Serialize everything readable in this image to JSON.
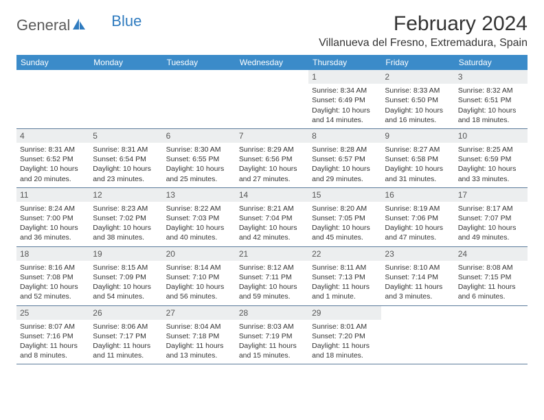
{
  "logo": {
    "text1": "General",
    "text2": "Blue"
  },
  "title": "February 2024",
  "location": "Villanueva del Fresno, Extremadura, Spain",
  "day_header_bg": "#3b8bc9",
  "day_headers": [
    "Sunday",
    "Monday",
    "Tuesday",
    "Wednesday",
    "Thursday",
    "Friday",
    "Saturday"
  ],
  "weeks": [
    [
      {
        "num": "",
        "lines": []
      },
      {
        "num": "",
        "lines": []
      },
      {
        "num": "",
        "lines": []
      },
      {
        "num": "",
        "lines": []
      },
      {
        "num": "1",
        "lines": [
          "Sunrise: 8:34 AM",
          "Sunset: 6:49 PM",
          "Daylight: 10 hours and 14 minutes."
        ]
      },
      {
        "num": "2",
        "lines": [
          "Sunrise: 8:33 AM",
          "Sunset: 6:50 PM",
          "Daylight: 10 hours and 16 minutes."
        ]
      },
      {
        "num": "3",
        "lines": [
          "Sunrise: 8:32 AM",
          "Sunset: 6:51 PM",
          "Daylight: 10 hours and 18 minutes."
        ]
      }
    ],
    [
      {
        "num": "4",
        "lines": [
          "Sunrise: 8:31 AM",
          "Sunset: 6:52 PM",
          "Daylight: 10 hours and 20 minutes."
        ]
      },
      {
        "num": "5",
        "lines": [
          "Sunrise: 8:31 AM",
          "Sunset: 6:54 PM",
          "Daylight: 10 hours and 23 minutes."
        ]
      },
      {
        "num": "6",
        "lines": [
          "Sunrise: 8:30 AM",
          "Sunset: 6:55 PM",
          "Daylight: 10 hours and 25 minutes."
        ]
      },
      {
        "num": "7",
        "lines": [
          "Sunrise: 8:29 AM",
          "Sunset: 6:56 PM",
          "Daylight: 10 hours and 27 minutes."
        ]
      },
      {
        "num": "8",
        "lines": [
          "Sunrise: 8:28 AM",
          "Sunset: 6:57 PM",
          "Daylight: 10 hours and 29 minutes."
        ]
      },
      {
        "num": "9",
        "lines": [
          "Sunrise: 8:27 AM",
          "Sunset: 6:58 PM",
          "Daylight: 10 hours and 31 minutes."
        ]
      },
      {
        "num": "10",
        "lines": [
          "Sunrise: 8:25 AM",
          "Sunset: 6:59 PM",
          "Daylight: 10 hours and 33 minutes."
        ]
      }
    ],
    [
      {
        "num": "11",
        "lines": [
          "Sunrise: 8:24 AM",
          "Sunset: 7:00 PM",
          "Daylight: 10 hours and 36 minutes."
        ]
      },
      {
        "num": "12",
        "lines": [
          "Sunrise: 8:23 AM",
          "Sunset: 7:02 PM",
          "Daylight: 10 hours and 38 minutes."
        ]
      },
      {
        "num": "13",
        "lines": [
          "Sunrise: 8:22 AM",
          "Sunset: 7:03 PM",
          "Daylight: 10 hours and 40 minutes."
        ]
      },
      {
        "num": "14",
        "lines": [
          "Sunrise: 8:21 AM",
          "Sunset: 7:04 PM",
          "Daylight: 10 hours and 42 minutes."
        ]
      },
      {
        "num": "15",
        "lines": [
          "Sunrise: 8:20 AM",
          "Sunset: 7:05 PM",
          "Daylight: 10 hours and 45 minutes."
        ]
      },
      {
        "num": "16",
        "lines": [
          "Sunrise: 8:19 AM",
          "Sunset: 7:06 PM",
          "Daylight: 10 hours and 47 minutes."
        ]
      },
      {
        "num": "17",
        "lines": [
          "Sunrise: 8:17 AM",
          "Sunset: 7:07 PM",
          "Daylight: 10 hours and 49 minutes."
        ]
      }
    ],
    [
      {
        "num": "18",
        "lines": [
          "Sunrise: 8:16 AM",
          "Sunset: 7:08 PM",
          "Daylight: 10 hours and 52 minutes."
        ]
      },
      {
        "num": "19",
        "lines": [
          "Sunrise: 8:15 AM",
          "Sunset: 7:09 PM",
          "Daylight: 10 hours and 54 minutes."
        ]
      },
      {
        "num": "20",
        "lines": [
          "Sunrise: 8:14 AM",
          "Sunset: 7:10 PM",
          "Daylight: 10 hours and 56 minutes."
        ]
      },
      {
        "num": "21",
        "lines": [
          "Sunrise: 8:12 AM",
          "Sunset: 7:11 PM",
          "Daylight: 10 hours and 59 minutes."
        ]
      },
      {
        "num": "22",
        "lines": [
          "Sunrise: 8:11 AM",
          "Sunset: 7:13 PM",
          "Daylight: 11 hours and 1 minute."
        ]
      },
      {
        "num": "23",
        "lines": [
          "Sunrise: 8:10 AM",
          "Sunset: 7:14 PM",
          "Daylight: 11 hours and 3 minutes."
        ]
      },
      {
        "num": "24",
        "lines": [
          "Sunrise: 8:08 AM",
          "Sunset: 7:15 PM",
          "Daylight: 11 hours and 6 minutes."
        ]
      }
    ],
    [
      {
        "num": "25",
        "lines": [
          "Sunrise: 8:07 AM",
          "Sunset: 7:16 PM",
          "Daylight: 11 hours and 8 minutes."
        ]
      },
      {
        "num": "26",
        "lines": [
          "Sunrise: 8:06 AM",
          "Sunset: 7:17 PM",
          "Daylight: 11 hours and 11 minutes."
        ]
      },
      {
        "num": "27",
        "lines": [
          "Sunrise: 8:04 AM",
          "Sunset: 7:18 PM",
          "Daylight: 11 hours and 13 minutes."
        ]
      },
      {
        "num": "28",
        "lines": [
          "Sunrise: 8:03 AM",
          "Sunset: 7:19 PM",
          "Daylight: 11 hours and 15 minutes."
        ]
      },
      {
        "num": "29",
        "lines": [
          "Sunrise: 8:01 AM",
          "Sunset: 7:20 PM",
          "Daylight: 11 hours and 18 minutes."
        ]
      },
      {
        "num": "",
        "lines": []
      },
      {
        "num": "",
        "lines": []
      }
    ]
  ]
}
